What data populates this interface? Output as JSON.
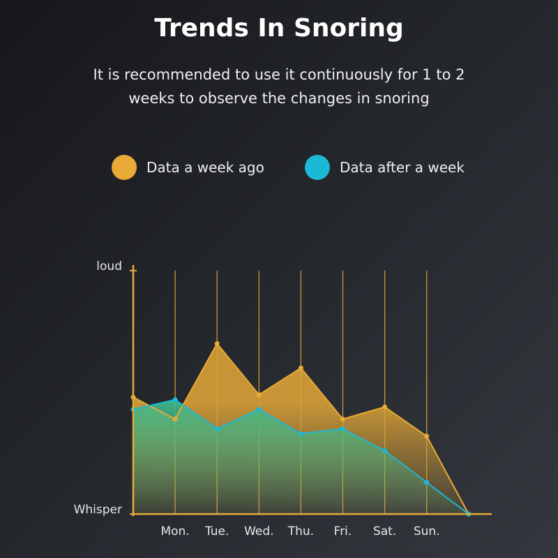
{
  "chart_data": {
    "type": "area",
    "title": "Trends In Snoring",
    "subtitle": "It is recommended to use it continuously for 1 to 2 weeks to observe the changes in snoring",
    "categories": [
      null,
      "Mon.",
      "Tue.",
      "Wed.",
      "Thu.",
      "Fri.",
      "Sat.",
      "Sun.",
      null
    ],
    "series": [
      {
        "name": "Data a week ago",
        "color": "#e9aa38",
        "values": [
          48,
          39,
          70,
          49,
          60,
          39,
          44,
          32,
          0
        ]
      },
      {
        "name": "Data after a week",
        "color": "#1bb9d6",
        "values": [
          43,
          47,
          35,
          43,
          33,
          35,
          26,
          13,
          0
        ]
      }
    ],
    "ylim": [
      0,
      100
    ],
    "yticks": [
      {
        "value": 0,
        "label": "Whisper"
      },
      {
        "value": 100,
        "label": "loud"
      }
    ]
  }
}
